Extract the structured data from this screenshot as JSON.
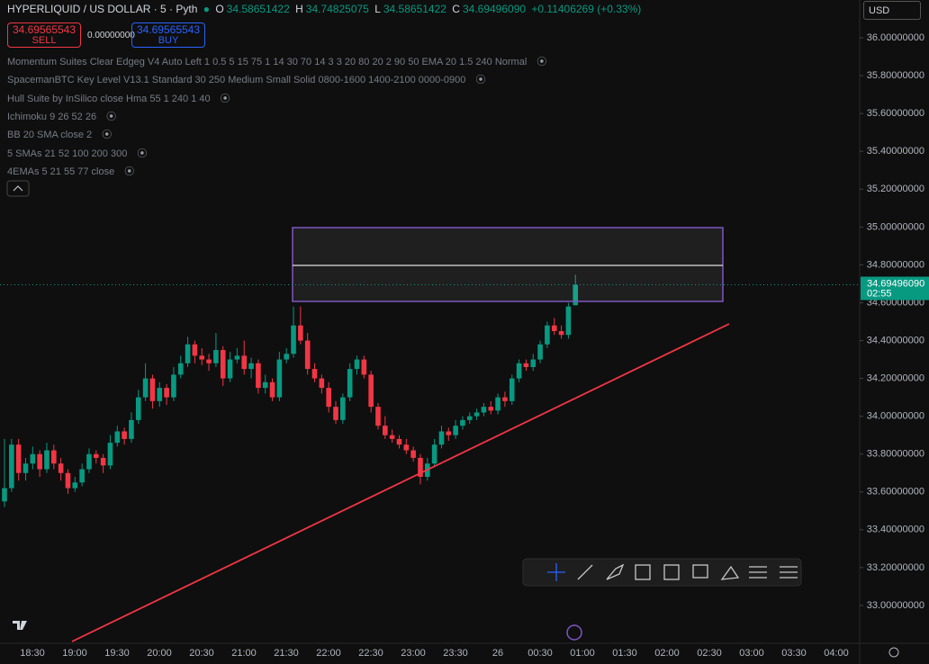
{
  "header": {
    "symbol": "HYPERLIQUID / US DOLLAR · 5 · Pyth",
    "o_label": "O",
    "open": "34.58651422",
    "h_label": "H",
    "high": "34.74825075",
    "l_label": "L",
    "low": "34.58651422",
    "c_label": "C",
    "close": "34.69496090",
    "change": "+0.11406269 (+0.33%)"
  },
  "trade": {
    "sell_price": "34.69565543",
    "sell_label": "SELL",
    "spread": "0.00000000",
    "buy_price": "34.69565543",
    "buy_label": "BUY"
  },
  "indicators": [
    "Momentum Suites Clear Edgeg V4 Auto Left 1 0.5 5 15 75 1 14 30 70 14 3 3 20 80 20 2 90 50 EMA 20 1.5 240 Normal",
    "SpacemanBTC Key Level V13.1 Standard 30 250 Medium Small Solid 0800-1600 1400-2100 0000-0900",
    "Hull Suite by InSilico close Hma 55 1 240 1 40",
    "Ichimoku 9 26 52 26",
    "BB 20 SMA close 2",
    "5 SMAs 21 52 100 200 300",
    "4EMAs 5 21 55 77 close"
  ],
  "currency": "USD",
  "chart_data": {
    "type": "candlestick",
    "up_color": "#089981",
    "down_color": "#f23645",
    "ylim": [
      32.8,
      36.2
    ],
    "yticks": [
      {
        "value": 36,
        "label": "36.00000000"
      },
      {
        "value": 35.8,
        "label": "35.80000000"
      },
      {
        "value": 35.6,
        "label": "35.60000000"
      },
      {
        "value": 35.4,
        "label": "35.40000000"
      },
      {
        "value": 35.2,
        "label": "35.20000000"
      },
      {
        "value": 35,
        "label": "35.00000000"
      },
      {
        "value": 34.8,
        "label": "34.80000000"
      },
      {
        "value": 34.6,
        "label": "34.60000000"
      },
      {
        "value": 34.4,
        "label": "34.40000000"
      },
      {
        "value": 34.2,
        "label": "34.20000000"
      },
      {
        "value": 34,
        "label": "34.00000000"
      },
      {
        "value": 33.8,
        "label": "33.80000000"
      },
      {
        "value": 33.6,
        "label": "33.60000000"
      },
      {
        "value": 33.4,
        "label": "33.40000000"
      },
      {
        "value": 33.2,
        "label": "33.20000000"
      },
      {
        "value": 33,
        "label": "33.00000000"
      }
    ],
    "x_labels": [
      "18:30",
      "19:00",
      "19:30",
      "20:00",
      "20:30",
      "21:00",
      "21:30",
      "22:00",
      "22:30",
      "23:00",
      "23:30",
      "26",
      "00:30",
      "01:00",
      "01:30",
      "02:00",
      "02:30",
      "03:00",
      "03:30",
      "04:00"
    ],
    "last_price": {
      "value": 34.6949609,
      "label": "34.69496090",
      "countdown": "02:55"
    },
    "candles": [
      [
        33.55,
        33.88,
        33.52,
        33.62
      ],
      [
        33.62,
        33.88,
        33.6,
        33.85
      ],
      [
        33.85,
        33.88,
        33.66,
        33.7
      ],
      [
        33.7,
        33.78,
        33.66,
        33.75
      ],
      [
        33.75,
        33.84,
        33.72,
        33.8
      ],
      [
        33.8,
        33.82,
        33.68,
        33.72
      ],
      [
        33.72,
        33.86,
        33.7,
        33.82
      ],
      [
        33.82,
        33.85,
        33.72,
        33.75
      ],
      [
        33.75,
        33.78,
        33.66,
        33.7
      ],
      [
        33.7,
        33.72,
        33.59,
        33.62
      ],
      [
        33.62,
        33.68,
        33.6,
        33.65
      ],
      [
        33.65,
        33.75,
        33.63,
        33.72
      ],
      [
        33.72,
        33.83,
        33.7,
        33.8
      ],
      [
        33.8,
        33.82,
        33.75,
        33.78
      ],
      [
        33.78,
        33.8,
        33.7,
        33.74
      ],
      [
        33.74,
        33.9,
        33.72,
        33.86
      ],
      [
        33.86,
        33.95,
        33.84,
        33.92
      ],
      [
        33.92,
        33.94,
        33.85,
        33.88
      ],
      [
        33.88,
        34.02,
        33.86,
        33.98
      ],
      [
        33.98,
        34.14,
        33.96,
        34.1
      ],
      [
        34.1,
        34.28,
        34.08,
        34.2
      ],
      [
        34.2,
        34.22,
        34.04,
        34.08
      ],
      [
        34.08,
        34.18,
        34.05,
        34.15
      ],
      [
        34.15,
        34.17,
        34.06,
        34.1
      ],
      [
        34.1,
        34.26,
        34.08,
        34.22
      ],
      [
        34.22,
        34.32,
        34.2,
        34.28
      ],
      [
        34.28,
        34.42,
        34.26,
        34.38
      ],
      [
        34.38,
        34.4,
        34.28,
        34.32
      ],
      [
        34.32,
        34.36,
        34.27,
        34.3
      ],
      [
        34.3,
        34.33,
        34.24,
        34.28
      ],
      [
        34.28,
        34.44,
        34.26,
        34.35
      ],
      [
        34.35,
        34.37,
        34.16,
        34.2
      ],
      [
        34.2,
        34.34,
        34.18,
        34.3
      ],
      [
        34.3,
        34.36,
        34.28,
        34.32
      ],
      [
        34.32,
        34.4,
        34.22,
        34.25
      ],
      [
        34.25,
        34.31,
        34.2,
        34.28
      ],
      [
        34.28,
        34.3,
        34.12,
        34.15
      ],
      [
        34.15,
        34.22,
        34.12,
        34.18
      ],
      [
        34.18,
        34.2,
        34.08,
        34.1
      ],
      [
        34.1,
        34.34,
        34.08,
        34.3
      ],
      [
        34.3,
        34.36,
        34.28,
        34.33
      ],
      [
        34.33,
        34.58,
        34.31,
        34.48
      ],
      [
        34.48,
        34.58,
        34.38,
        34.4
      ],
      [
        34.4,
        34.44,
        34.22,
        34.25
      ],
      [
        34.25,
        34.28,
        34.18,
        34.2
      ],
      [
        34.2,
        34.22,
        34.12,
        34.15
      ],
      [
        34.15,
        34.18,
        34.02,
        34.05
      ],
      [
        34.05,
        34.08,
        33.96,
        33.98
      ],
      [
        33.98,
        34.12,
        33.96,
        34.1
      ],
      [
        34.1,
        34.28,
        34.08,
        34.25
      ],
      [
        34.25,
        34.32,
        34.22,
        34.3
      ],
      [
        34.3,
        34.32,
        34.2,
        34.22
      ],
      [
        34.22,
        34.24,
        34.02,
        34.05
      ],
      [
        34.05,
        34.07,
        33.93,
        33.95
      ],
      [
        33.95,
        34,
        33.88,
        33.9
      ],
      [
        33.9,
        33.93,
        33.86,
        33.88
      ],
      [
        33.88,
        33.9,
        33.83,
        33.85
      ],
      [
        33.85,
        33.88,
        33.8,
        33.82
      ],
      [
        33.82,
        33.84,
        33.76,
        33.78
      ],
      [
        33.78,
        33.8,
        33.64,
        33.68
      ],
      [
        33.68,
        33.78,
        33.66,
        33.75
      ],
      [
        33.75,
        33.88,
        33.73,
        33.85
      ],
      [
        33.85,
        33.95,
        33.83,
        33.92
      ],
      [
        33.92,
        33.94,
        33.87,
        33.9
      ],
      [
        33.9,
        33.98,
        33.88,
        33.95
      ],
      [
        33.95,
        34,
        33.93,
        33.98
      ],
      [
        33.98,
        34.02,
        33.96,
        34
      ],
      [
        34,
        34.04,
        33.98,
        34.02
      ],
      [
        34.02,
        34.07,
        34,
        34.05
      ],
      [
        34.05,
        34.08,
        34.01,
        34.03
      ],
      [
        34.03,
        34.12,
        34.01,
        34.1
      ],
      [
        34.1,
        34.13,
        34.05,
        34.08
      ],
      [
        34.08,
        34.22,
        34.06,
        34.2
      ],
      [
        34.2,
        34.3,
        34.18,
        34.28
      ],
      [
        34.28,
        34.3,
        34.24,
        34.26
      ],
      [
        34.26,
        34.33,
        34.24,
        34.3
      ],
      [
        34.3,
        34.4,
        34.28,
        34.38
      ],
      [
        34.38,
        34.5,
        34.36,
        34.48
      ],
      [
        34.48,
        34.52,
        34.43,
        34.45
      ],
      [
        34.45,
        34.48,
        34.41,
        34.43
      ],
      [
        34.43,
        34.6,
        34.41,
        34.58
      ],
      [
        34.58651422,
        34.74825075,
        34.58651422,
        34.6949609
      ]
    ]
  }
}
